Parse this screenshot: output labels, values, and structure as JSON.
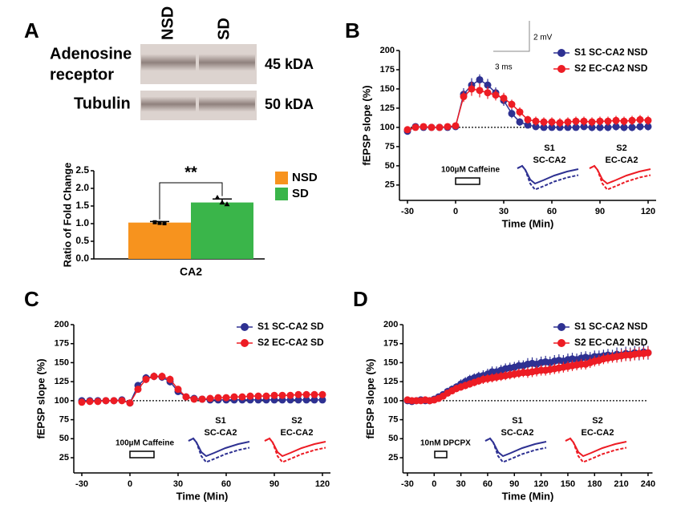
{
  "blot": {
    "panel": "A",
    "lanes": [
      "NSD",
      "SD"
    ],
    "rows": [
      {
        "label_lines": [
          "Adenosine",
          "receptor"
        ],
        "size": "45 kDA"
      },
      {
        "label_lines": [
          "Tubulin"
        ],
        "size": "50 kDA"
      }
    ]
  },
  "chart_data": [
    {
      "type": "bar",
      "categories": [
        "CA2"
      ],
      "ylabel": "Ratio of Fold Change",
      "ylim": [
        0,
        2.5
      ],
      "yticks": [
        {
          "value": 0,
          "label": "0.0"
        },
        0.5,
        {
          "value": 1,
          "label": "1.0"
        },
        1.5,
        {
          "value": 2,
          "label": "2.0"
        },
        2.5
      ],
      "series": [
        {
          "name": "NSD",
          "color": "#f7931e",
          "values": [
            1.03
          ],
          "errors": [
            0.03
          ],
          "points": [
            [
              1.04,
              1.02,
              1.01
            ]
          ]
        },
        {
          "name": "SD",
          "color": "#3ab54a",
          "values": [
            1.6
          ],
          "errors": [
            0.1
          ],
          "points": [
            [
              1.74,
              1.6,
              1.55
            ]
          ]
        }
      ],
      "annotation": "**",
      "legend": "right"
    },
    {
      "type": "line",
      "panel": "B",
      "xlabel": "Time (Min)",
      "ylabel": "fEPSP slope (%)",
      "xlim": [
        -35,
        125
      ],
      "xticks": [
        -30,
        0,
        30,
        60,
        90,
        120
      ],
      "ylim": [
        5,
        200
      ],
      "yticks": [
        25,
        50,
        75,
        100,
        125,
        150,
        175,
        200
      ],
      "x": [
        -30,
        -25,
        -20,
        -15,
        -10,
        -5,
        0,
        5,
        10,
        15,
        20,
        25,
        30,
        35,
        40,
        45,
        50,
        55,
        60,
        65,
        70,
        75,
        80,
        85,
        90,
        95,
        100,
        105,
        110,
        115,
        120
      ],
      "series": [
        {
          "name": "S1 SC-CA2 NSD",
          "color": "#2e3192",
          "values": [
            95,
            101,
            100,
            100,
            100,
            100,
            101,
            143,
            155,
            162,
            155,
            145,
            135,
            118,
            107,
            103,
            101,
            100,
            100,
            100,
            100,
            100,
            101,
            100,
            100,
            100,
            101,
            100,
            100,
            101,
            101
          ],
          "errors": [
            3,
            3,
            2,
            2,
            2,
            2,
            2,
            8,
            9,
            7,
            8,
            7,
            7,
            6,
            5,
            4,
            4,
            4,
            4,
            4,
            4,
            4,
            4,
            5,
            5,
            5,
            5,
            5,
            5,
            5,
            5
          ]
        },
        {
          "name": "S2 EC-CA2 NSD",
          "color": "#ed1c24",
          "values": [
            97,
            100,
            101,
            100,
            100,
            101,
            102,
            140,
            150,
            148,
            145,
            142,
            138,
            130,
            120,
            110,
            108,
            107,
            107,
            106,
            107,
            108,
            108,
            107,
            108,
            108,
            109,
            108,
            109,
            110,
            109
          ],
          "errors": [
            3,
            2,
            2,
            2,
            2,
            2,
            2,
            7,
            9,
            9,
            8,
            7,
            7,
            6,
            6,
            5,
            6,
            6,
            6,
            6,
            6,
            6,
            6,
            6,
            6,
            6,
            6,
            6,
            6,
            6,
            6
          ]
        }
      ],
      "hline": 100,
      "drug": "100µM Caffeine",
      "trace_labels": [
        [
          "S1",
          "SC-CA2"
        ],
        [
          "S2",
          "EC-CA2"
        ]
      ],
      "scale_bar": [
        "2 mV",
        "3 ms"
      ],
      "legend": "upper right"
    },
    {
      "type": "line",
      "panel": "C",
      "xlabel": "Time (Min)",
      "ylabel": "fEPSP slope (%)",
      "xlim": [
        -35,
        125
      ],
      "xticks": [
        -30,
        0,
        30,
        60,
        90,
        120
      ],
      "ylim": [
        5,
        200
      ],
      "yticks": [
        25,
        50,
        75,
        100,
        125,
        150,
        175,
        200
      ],
      "x": [
        -30,
        -25,
        -20,
        -15,
        -10,
        -5,
        0,
        5,
        10,
        15,
        20,
        25,
        30,
        35,
        40,
        45,
        50,
        55,
        60,
        65,
        70,
        75,
        80,
        85,
        90,
        95,
        100,
        105,
        110,
        115,
        120
      ],
      "series": [
        {
          "name": "S1 SC-CA2 SD",
          "color": "#2e3192",
          "values": [
            100,
            100,
            100,
            100,
            100,
            101,
            97,
            120,
            130,
            132,
            131,
            125,
            112,
            105,
            103,
            102,
            101,
            101,
            101,
            101,
            101,
            101,
            101,
            101,
            101,
            101,
            101,
            101,
            101,
            101,
            101
          ],
          "errors": [
            3,
            3,
            3,
            3,
            3,
            3,
            3,
            4,
            5,
            5,
            5,
            5,
            4,
            4,
            4,
            4,
            4,
            4,
            4,
            4,
            4,
            4,
            4,
            4,
            4,
            4,
            4,
            4,
            4,
            4,
            4
          ]
        },
        {
          "name": "S2 EC-CA2 SD",
          "color": "#ed1c24",
          "values": [
            98,
            99,
            99,
            100,
            100,
            100,
            97,
            115,
            128,
            132,
            132,
            128,
            115,
            105,
            102,
            102,
            103,
            104,
            104,
            105,
            105,
            106,
            106,
            106,
            107,
            107,
            107,
            108,
            108,
            108,
            108
          ],
          "errors": [
            3,
            3,
            3,
            3,
            3,
            3,
            3,
            4,
            5,
            5,
            5,
            5,
            4,
            4,
            4,
            4,
            4,
            4,
            4,
            4,
            4,
            4,
            4,
            4,
            4,
            4,
            4,
            4,
            4,
            4,
            4
          ]
        }
      ],
      "hline": 100,
      "drug": "100µM Caffeine",
      "trace_labels": [
        [
          "S1",
          "SC-CA2"
        ],
        [
          "S2",
          "EC-CA2"
        ]
      ],
      "legend": "upper right"
    },
    {
      "type": "line",
      "panel": "D",
      "xlabel": "Time (Min)",
      "ylabel": "fEPSP slope (%)",
      "xlim": [
        -35,
        245
      ],
      "xticks": [
        -30,
        0,
        30,
        60,
        90,
        120,
        150,
        180,
        210,
        240
      ],
      "ylim": [
        5,
        200
      ],
      "yticks": [
        25,
        50,
        75,
        100,
        125,
        150,
        175,
        200
      ],
      "x": [
        -30,
        -25,
        -20,
        -15,
        -10,
        -5,
        0,
        5,
        10,
        15,
        20,
        25,
        30,
        35,
        40,
        45,
        50,
        55,
        60,
        65,
        70,
        75,
        80,
        85,
        90,
        95,
        100,
        105,
        110,
        115,
        120,
        125,
        130,
        135,
        140,
        145,
        150,
        155,
        160,
        165,
        170,
        175,
        180,
        185,
        190,
        195,
        200,
        205,
        210,
        215,
        220,
        225,
        230,
        235,
        240
      ],
      "series": [
        {
          "name": "S1 SC-CA2 NSD",
          "color": "#2e3192",
          "values": [
            100,
            99,
            100,
            101,
            100,
            100,
            102,
            105,
            108,
            112,
            115,
            118,
            122,
            125,
            128,
            130,
            132,
            133,
            135,
            138,
            138,
            140,
            142,
            143,
            144,
            146,
            146,
            148,
            149,
            148,
            150,
            151,
            150,
            152,
            153,
            152,
            154,
            155,
            154,
            156,
            157,
            156,
            158,
            158,
            159,
            160,
            159,
            161,
            160,
            162,
            161,
            163,
            162,
            164,
            163
          ],
          "errors": [
            2,
            2,
            2,
            2,
            2,
            2,
            2,
            4,
            4,
            5,
            5,
            5,
            6,
            6,
            6,
            6,
            6,
            7,
            7,
            7,
            7,
            7,
            7,
            7,
            7,
            7,
            7,
            8,
            8,
            8,
            8,
            8,
            8,
            8,
            8,
            8,
            8,
            8,
            8,
            8,
            8,
            8,
            8,
            8,
            8,
            8,
            8,
            9,
            9,
            9,
            9,
            9,
            9,
            9,
            9
          ]
        },
        {
          "name": "S2 EC-CA2 NSD",
          "color": "#ed1c24",
          "values": [
            101,
            100,
            100,
            100,
            101,
            100,
            101,
            103,
            106,
            110,
            113,
            116,
            118,
            120,
            122,
            124,
            126,
            128,
            129,
            130,
            131,
            132,
            133,
            134,
            135,
            136,
            137,
            137,
            138,
            139,
            140,
            140,
            141,
            142,
            143,
            144,
            145,
            146,
            147,
            148,
            148,
            150,
            152,
            153,
            155,
            156,
            157,
            158,
            159,
            160,
            160,
            161,
            162,
            162,
            163
          ],
          "errors": [
            2,
            2,
            2,
            2,
            2,
            2,
            2,
            3,
            4,
            4,
            4,
            5,
            5,
            5,
            5,
            5,
            5,
            6,
            6,
            6,
            6,
            6,
            6,
            6,
            6,
            6,
            6,
            7,
            7,
            7,
            7,
            7,
            7,
            7,
            7,
            7,
            7,
            7,
            7,
            7,
            7,
            7,
            7,
            7,
            7,
            7,
            7,
            8,
            8,
            8,
            8,
            8,
            8,
            8,
            8
          ]
        }
      ],
      "hline": 100,
      "drug": "10nM DPCPX",
      "trace_labels": [
        [
          "S1",
          "SC-CA2"
        ],
        [
          "S2",
          "EC-CA2"
        ]
      ],
      "legend": "upper right"
    }
  ]
}
